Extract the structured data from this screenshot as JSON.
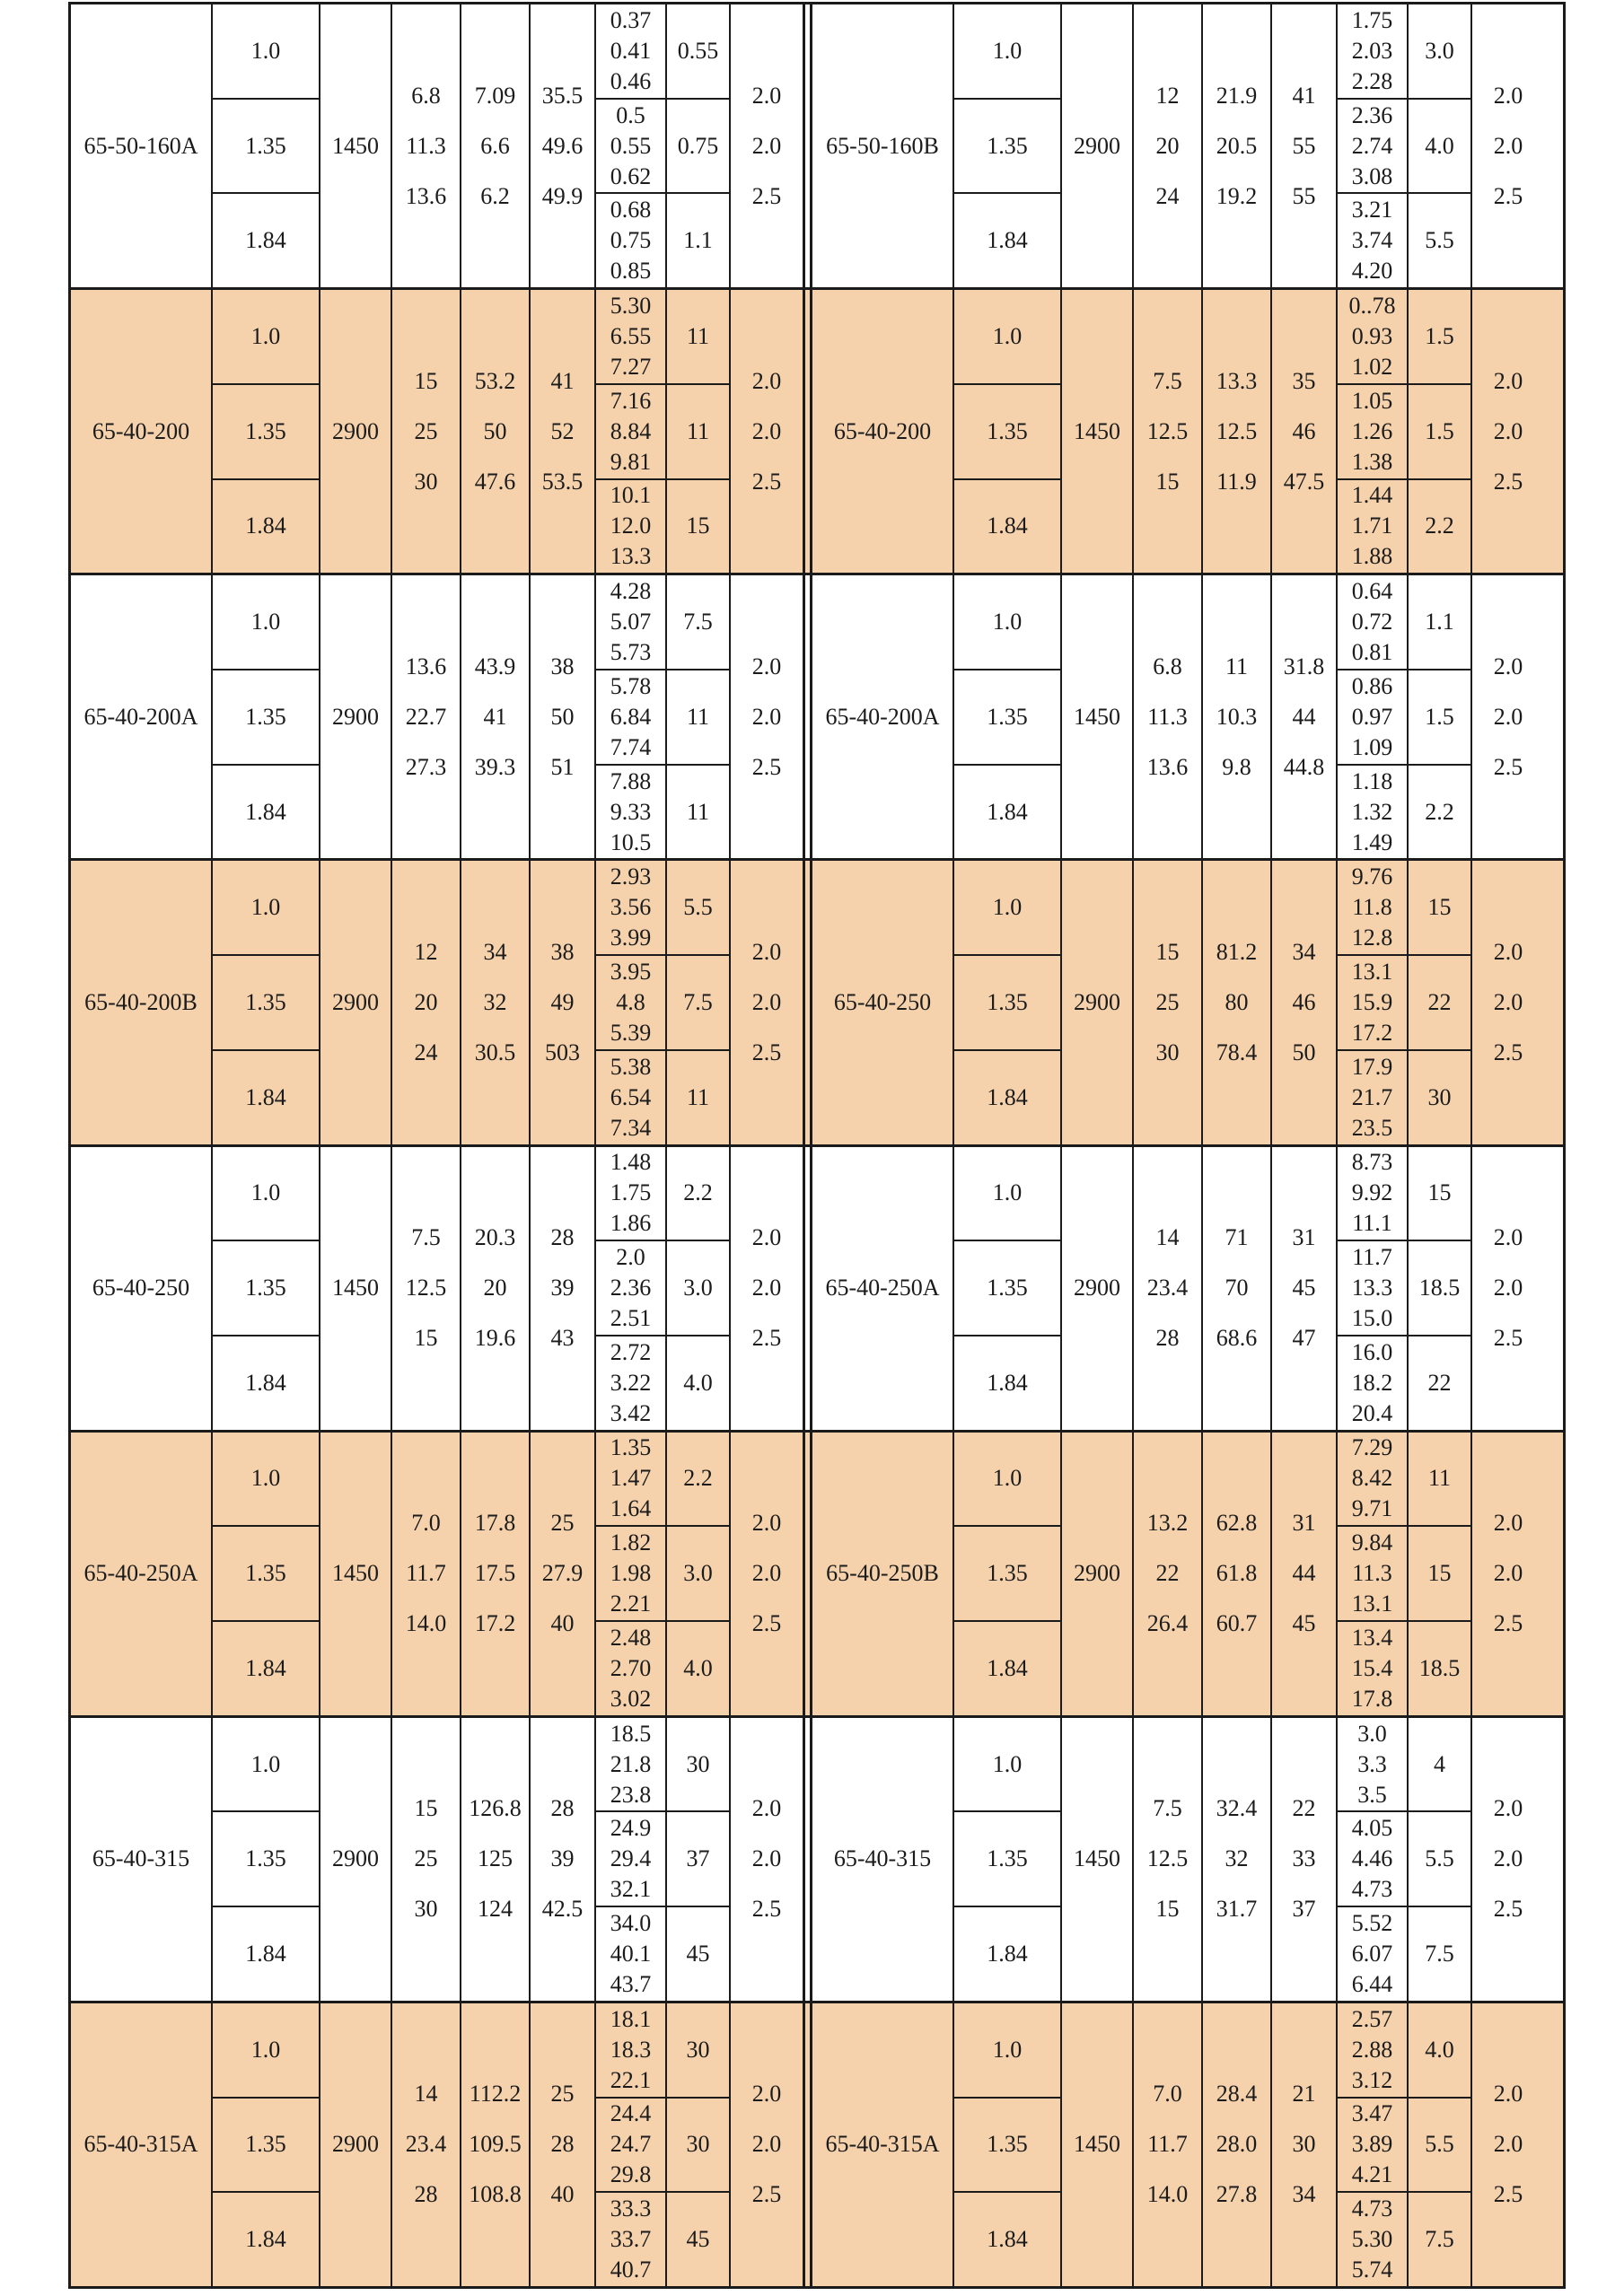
{
  "table": {
    "colors": {
      "shaded_row_bg": "#F5D2AC",
      "plain_row_bg": "#FFFFFF",
      "line": "#1B1B1B"
    },
    "groups": [
      {
        "shaded": false,
        "left": {
          "model": "65-50-160A",
          "ratios": [
            "1.0",
            "1.35",
            "1.84"
          ],
          "speed": "1450",
          "flow": [
            "6.8",
            "11.3",
            "13.6"
          ],
          "head": [
            "7.09",
            "6.6",
            "6.2"
          ],
          "eff": [
            "35.5",
            "49.6",
            "49.9"
          ],
          "power": [
            [
              "0.37",
              "0.41",
              "0.46"
            ],
            [
              "0.5",
              "0.55",
              "0.62"
            ],
            [
              "0.68",
              "0.75",
              "0.85"
            ]
          ],
          "motor": [
            "0.55",
            "0.75",
            "1.1"
          ],
          "grade": [
            "2.0",
            "2.0",
            "2.5"
          ]
        },
        "right": {
          "model": "65-50-160B",
          "ratios": [
            "1.0",
            "1.35",
            "1.84"
          ],
          "speed": "2900",
          "flow": [
            "12",
            "20",
            "24"
          ],
          "head": [
            "21.9",
            "20.5",
            "19.2"
          ],
          "eff": [
            "41",
            "55",
            "55"
          ],
          "power": [
            [
              "1.75",
              "2.03",
              "2.28"
            ],
            [
              "2.36",
              "2.74",
              "3.08"
            ],
            [
              "3.21",
              "3.74",
              "4.20"
            ]
          ],
          "motor": [
            "3.0",
            "4.0",
            "5.5"
          ],
          "grade": [
            "2.0",
            "2.0",
            "2.5"
          ]
        }
      },
      {
        "shaded": true,
        "left": {
          "model": "65-40-200",
          "ratios": [
            "1.0",
            "1.35",
            "1.84"
          ],
          "speed": "2900",
          "flow": [
            "15",
            "25",
            "30"
          ],
          "head": [
            "53.2",
            "50",
            "47.6"
          ],
          "eff": [
            "41",
            "52",
            "53.5"
          ],
          "power": [
            [
              "5.30",
              "6.55",
              "7.27"
            ],
            [
              "7.16",
              "8.84",
              "9.81"
            ],
            [
              "10.1",
              "12.0",
              "13.3"
            ]
          ],
          "motor": [
            "11",
            "11",
            "15"
          ],
          "grade": [
            "2.0",
            "2.0",
            "2.5"
          ]
        },
        "right": {
          "model": "65-40-200",
          "ratios": [
            "1.0",
            "1.35",
            "1.84"
          ],
          "speed": "1450",
          "flow": [
            "7.5",
            "12.5",
            "15"
          ],
          "head": [
            "13.3",
            "12.5",
            "11.9"
          ],
          "eff": [
            "35",
            "46",
            "47.5"
          ],
          "power": [
            [
              "0..78",
              "0.93",
              "1.02"
            ],
            [
              "1.05",
              "1.26",
              "1.38"
            ],
            [
              "1.44",
              "1.71",
              "1.88"
            ]
          ],
          "motor": [
            "1.5",
            "1.5",
            "2.2"
          ],
          "grade": [
            "2.0",
            "2.0",
            "2.5"
          ]
        }
      },
      {
        "shaded": false,
        "left": {
          "model": "65-40-200A",
          "ratios": [
            "1.0",
            "1.35",
            "1.84"
          ],
          "speed": "2900",
          "flow": [
            "13.6",
            "22.7",
            "27.3"
          ],
          "head": [
            "43.9",
            "41",
            "39.3"
          ],
          "eff": [
            "38",
            "50",
            "51"
          ],
          "power": [
            [
              "4.28",
              "5.07",
              "5.73"
            ],
            [
              "5.78",
              "6.84",
              "7.74"
            ],
            [
              "7.88",
              "9.33",
              "10.5"
            ]
          ],
          "motor": [
            "7.5",
            "11",
            "11"
          ],
          "grade": [
            "2.0",
            "2.0",
            "2.5"
          ]
        },
        "right": {
          "model": "65-40-200A",
          "ratios": [
            "1.0",
            "1.35",
            "1.84"
          ],
          "speed": "1450",
          "flow": [
            "6.8",
            "11.3",
            "13.6"
          ],
          "head": [
            "11",
            "10.3",
            "9.8"
          ],
          "eff": [
            "31.8",
            "44",
            "44.8"
          ],
          "power": [
            [
              "0.64",
              "0.72",
              "0.81"
            ],
            [
              "0.86",
              "0.97",
              "1.09"
            ],
            [
              "1.18",
              "1.32",
              "1.49"
            ]
          ],
          "motor": [
            "1.1",
            "1.5",
            "2.2"
          ],
          "grade": [
            "2.0",
            "2.0",
            "2.5"
          ]
        }
      },
      {
        "shaded": true,
        "left": {
          "model": "65-40-200B",
          "ratios": [
            "1.0",
            "1.35",
            "1.84"
          ],
          "speed": "2900",
          "flow": [
            "12",
            "20",
            "24"
          ],
          "head": [
            "34",
            "32",
            "30.5"
          ],
          "eff": [
            "38",
            "49",
            "503"
          ],
          "power": [
            [
              "2.93",
              "3.56",
              "3.99"
            ],
            [
              "3.95",
              "4.8",
              "5.39"
            ],
            [
              "5.38",
              "6.54",
              "7.34"
            ]
          ],
          "motor": [
            "5.5",
            "7.5",
            "11"
          ],
          "grade": [
            "2.0",
            "2.0",
            "2.5"
          ]
        },
        "right": {
          "model": "65-40-250",
          "ratios": [
            "1.0",
            "1.35",
            "1.84"
          ],
          "speed": "2900",
          "flow": [
            "15",
            "25",
            "30"
          ],
          "head": [
            "81.2",
            "80",
            "78.4"
          ],
          "eff": [
            "34",
            "46",
            "50"
          ],
          "power": [
            [
              "9.76",
              "11.8",
              "12.8"
            ],
            [
              "13.1",
              "15.9",
              "17.2"
            ],
            [
              "17.9",
              "21.7",
              "23.5"
            ]
          ],
          "motor": [
            "15",
            "22",
            "30"
          ],
          "grade": [
            "2.0",
            "2.0",
            "2.5"
          ]
        }
      },
      {
        "shaded": false,
        "left": {
          "model": "65-40-250",
          "ratios": [
            "1.0",
            "1.35",
            "1.84"
          ],
          "speed": "1450",
          "flow": [
            "7.5",
            "12.5",
            "15"
          ],
          "head": [
            "20.3",
            "20",
            "19.6"
          ],
          "eff": [
            "28",
            "39",
            "43"
          ],
          "power": [
            [
              "1.48",
              "1.75",
              "1.86"
            ],
            [
              "2.0",
              "2.36",
              "2.51"
            ],
            [
              "2.72",
              "3.22",
              "3.42"
            ]
          ],
          "motor": [
            "2.2",
            "3.0",
            "4.0"
          ],
          "grade": [
            "2.0",
            "2.0",
            "2.5"
          ]
        },
        "right": {
          "model": "65-40-250A",
          "ratios": [
            "1.0",
            "1.35",
            "1.84"
          ],
          "speed": "2900",
          "flow": [
            "14",
            "23.4",
            "28"
          ],
          "head": [
            "71",
            "70",
            "68.6"
          ],
          "eff": [
            "31",
            "45",
            "47"
          ],
          "power": [
            [
              "8.73",
              "9.92",
              "11.1"
            ],
            [
              "11.7",
              "13.3",
              "15.0"
            ],
            [
              "16.0",
              "18.2",
              "20.4"
            ]
          ],
          "motor": [
            "15",
            "18.5",
            "22"
          ],
          "grade": [
            "2.0",
            "2.0",
            "2.5"
          ]
        }
      },
      {
        "shaded": true,
        "left": {
          "model": "65-40-250A",
          "ratios": [
            "1.0",
            "1.35",
            "1.84"
          ],
          "speed": "1450",
          "flow": [
            "7.0",
            "11.7",
            "14.0"
          ],
          "head": [
            "17.8",
            "17.5",
            "17.2"
          ],
          "eff": [
            "25",
            "27.9",
            "40"
          ],
          "power": [
            [
              "1.35",
              "1.47",
              "1.64"
            ],
            [
              "1.82",
              "1.98",
              "2.21"
            ],
            [
              "2.48",
              "2.70",
              "3.02"
            ]
          ],
          "motor": [
            "2.2",
            "3.0",
            "4.0"
          ],
          "grade": [
            "2.0",
            "2.0",
            "2.5"
          ]
        },
        "right": {
          "model": "65-40-250B",
          "ratios": [
            "1.0",
            "1.35",
            "1.84"
          ],
          "speed": "2900",
          "flow": [
            "13.2",
            "22",
            "26.4"
          ],
          "head": [
            "62.8",
            "61.8",
            "60.7"
          ],
          "eff": [
            "31",
            "44",
            "45"
          ],
          "power": [
            [
              "7.29",
              "8.42",
              "9.71"
            ],
            [
              "9.84",
              "11.3",
              "13.1"
            ],
            [
              "13.4",
              "15.4",
              "17.8"
            ]
          ],
          "motor": [
            "11",
            "15",
            "18.5"
          ],
          "grade": [
            "2.0",
            "2.0",
            "2.5"
          ]
        }
      },
      {
        "shaded": false,
        "left": {
          "model": "65-40-315",
          "ratios": [
            "1.0",
            "1.35",
            "1.84"
          ],
          "speed": "2900",
          "flow": [
            "15",
            "25",
            "30"
          ],
          "head": [
            "126.8",
            "125",
            "124"
          ],
          "eff": [
            "28",
            "39",
            "42.5"
          ],
          "power": [
            [
              "18.5",
              "21.8",
              "23.8"
            ],
            [
              "24.9",
              "29.4",
              "32.1"
            ],
            [
              "34.0",
              "40.1",
              "43.7"
            ]
          ],
          "motor": [
            "30",
            "37",
            "45"
          ],
          "grade": [
            "2.0",
            "2.0",
            "2.5"
          ]
        },
        "right": {
          "model": "65-40-315",
          "ratios": [
            "1.0",
            "1.35",
            "1.84"
          ],
          "speed": "1450",
          "flow": [
            "7.5",
            "12.5",
            "15"
          ],
          "head": [
            "32.4",
            "32",
            "31.7"
          ],
          "eff": [
            "22",
            "33",
            "37"
          ],
          "power": [
            [
              "3.0",
              "3.3",
              "3.5"
            ],
            [
              "4.05",
              "4.46",
              "4.73"
            ],
            [
              "5.52",
              "6.07",
              "6.44"
            ]
          ],
          "motor": [
            "4",
            "5.5",
            "7.5"
          ],
          "grade": [
            "2.0",
            "2.0",
            "2.5"
          ]
        }
      },
      {
        "shaded": true,
        "left": {
          "model": "65-40-315A",
          "ratios": [
            "1.0",
            "1.35",
            "1.84"
          ],
          "speed": "2900",
          "flow": [
            "14",
            "23.4",
            "28"
          ],
          "head": [
            "112.2",
            "109.5",
            "108.8"
          ],
          "eff": [
            "25",
            "28",
            "40"
          ],
          "power": [
            [
              "18.1",
              "18.3",
              "22.1"
            ],
            [
              "24.4",
              "24.7",
              "29.8"
            ],
            [
              "33.3",
              "33.7",
              "40.7"
            ]
          ],
          "motor": [
            "30",
            "30",
            "45"
          ],
          "grade": [
            "2.0",
            "2.0",
            "2.5"
          ]
        },
        "right": {
          "model": "65-40-315A",
          "ratios": [
            "1.0",
            "1.35",
            "1.84"
          ],
          "speed": "1450",
          "flow": [
            "7.0",
            "11.7",
            "14.0"
          ],
          "head": [
            "28.4",
            "28.0",
            "27.8"
          ],
          "eff": [
            "21",
            "30",
            "34"
          ],
          "power": [
            [
              "2.57",
              "2.88",
              "3.12"
            ],
            [
              "3.47",
              "3.89",
              "4.21"
            ],
            [
              "4.73",
              "5.30",
              "5.74"
            ]
          ],
          "motor": [
            "4.0",
            "5.5",
            "7.5"
          ],
          "grade": [
            "2.0",
            "2.0",
            "2.5"
          ]
        }
      }
    ]
  }
}
